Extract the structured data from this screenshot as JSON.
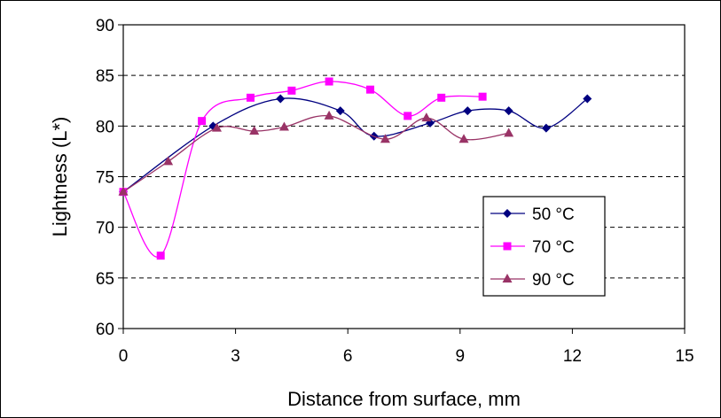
{
  "chart_data": {
    "type": "line",
    "xlabel": "Distance from surface, mm",
    "ylabel": "Lightness (L*)",
    "xlim": [
      0,
      15
    ],
    "ylim": [
      60,
      90
    ],
    "xticks": [
      "0",
      "3",
      "6",
      "9",
      "12",
      "15"
    ],
    "yticks": [
      "60",
      "65",
      "70",
      "75",
      "80",
      "85",
      "90"
    ],
    "grid": "horizontal dashed",
    "legend_position": "lower-right",
    "smoothed": true,
    "series": [
      {
        "name": "50 °C",
        "color": "#000080",
        "marker": "diamond",
        "x": [
          0,
          2.4,
          4.2,
          5.8,
          6.7,
          8.2,
          9.2,
          10.3,
          11.3,
          12.4
        ],
        "y": [
          73.5,
          80.0,
          82.7,
          81.5,
          79.0,
          80.3,
          81.5,
          81.5,
          79.8,
          82.7
        ]
      },
      {
        "name": "70 °C",
        "color": "#ff00ff",
        "marker": "square",
        "x": [
          0,
          1.0,
          2.1,
          3.4,
          4.5,
          5.5,
          6.6,
          7.6,
          8.5,
          9.6
        ],
        "y": [
          73.5,
          67.2,
          80.5,
          82.8,
          83.5,
          84.4,
          83.6,
          81.0,
          82.8,
          82.9
        ]
      },
      {
        "name": "90 °C",
        "color": "#993366",
        "marker": "triangle",
        "x": [
          0,
          1.2,
          2.5,
          3.5,
          4.3,
          5.5,
          7.0,
          8.1,
          9.1,
          10.3
        ],
        "y": [
          73.5,
          76.5,
          79.8,
          79.5,
          79.9,
          81.0,
          78.7,
          80.8,
          78.7,
          79.3
        ]
      }
    ]
  }
}
